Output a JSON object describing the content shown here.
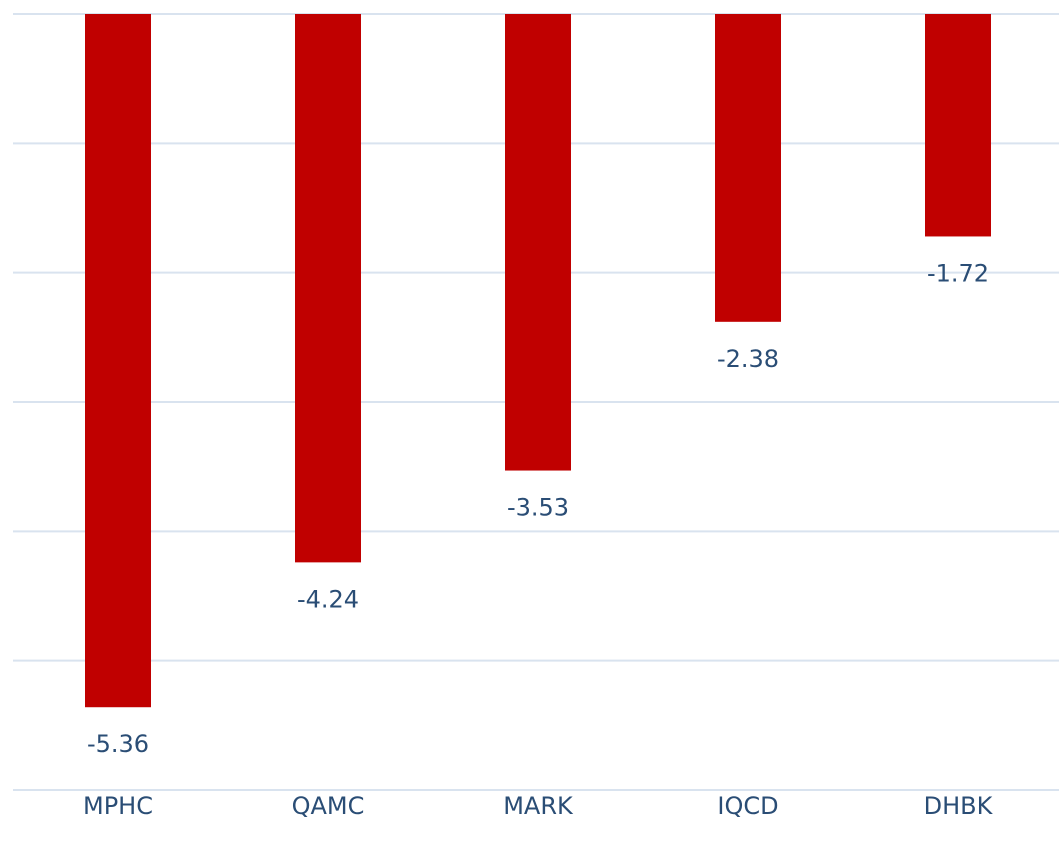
{
  "chart_data": {
    "type": "bar",
    "categories": [
      "MPHC",
      "QAMC",
      "MARK",
      "IQCD",
      "DHBK"
    ],
    "values": [
      -5.36,
      -4.24,
      -3.53,
      -2.38,
      -1.72
    ],
    "color": "#c00000",
    "ylim": [
      -6,
      0
    ],
    "yticks": [
      -6,
      -5,
      -4,
      -3,
      -2,
      -1,
      0
    ],
    "grid": true
  }
}
